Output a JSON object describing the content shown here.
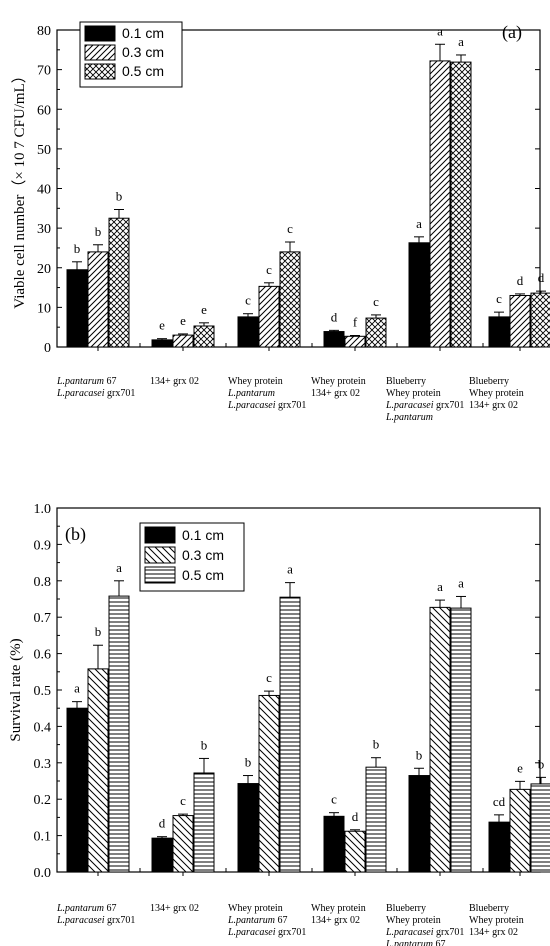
{
  "chart_data": [
    {
      "type": "bar",
      "panel_label": "(a)",
      "ylabel": "Viable cell number（× 10 7 CFU/mL）",
      "ylim": [
        0,
        80
      ],
      "yticks": [
        0,
        10,
        20,
        30,
        40,
        50,
        60,
        70,
        80
      ],
      "legend_position": "top-left",
      "categories": [
        {
          "lines": [
            {
              "text": "L.pantarum",
              "italic": true,
              "rest": " 67"
            },
            {
              "text": "L.paracasei",
              "italic": true,
              "rest": " grx701"
            }
          ]
        },
        {
          "lines": [
            {
              "text": "134+ grx 02",
              "italic": false,
              "rest": ""
            }
          ]
        },
        {
          "lines": [
            {
              "text": "Whey protein",
              "italic": false,
              "rest": ""
            },
            {
              "text": "L.pantarum",
              "italic": true,
              "rest": ""
            },
            {
              "text": "L.paracasei",
              "italic": true,
              "rest": " grx701"
            }
          ]
        },
        {
          "lines": [
            {
              "text": "Whey protein",
              "italic": false,
              "rest": ""
            },
            {
              "text": "134+ grx 02",
              "italic": false,
              "rest": ""
            }
          ]
        },
        {
          "lines": [
            {
              "text": "Blueberry",
              "italic": false,
              "rest": ""
            },
            {
              "text": "Whey protein",
              "italic": false,
              "rest": ""
            },
            {
              "text": "L.paracasei",
              "italic": true,
              "rest": " grx701"
            },
            {
              "text": "L.pantarum",
              "italic": true,
              "rest": ""
            }
          ]
        },
        {
          "lines": [
            {
              "text": "Blueberry",
              "italic": false,
              "rest": ""
            },
            {
              "text": "Whey protein",
              "italic": false,
              "rest": ""
            },
            {
              "text": "134+ grx 02",
              "italic": false,
              "rest": ""
            }
          ]
        }
      ],
      "series": [
        {
          "name": "0.1 cm",
          "pattern": "solid",
          "values": [
            19.5,
            1.8,
            7.6,
            3.9,
            26.3,
            7.6
          ],
          "errors": [
            2.0,
            0.3,
            0.8,
            0.3,
            1.5,
            1.2
          ],
          "letters": [
            "b",
            "e",
            "c",
            "d",
            "a",
            "c"
          ]
        },
        {
          "name": "0.3 cm",
          "pattern": "hatch",
          "values": [
            24.0,
            3.0,
            15.3,
            2.7,
            72.2,
            13.0
          ],
          "errors": [
            1.8,
            0.3,
            0.9,
            0.2,
            4.2,
            0.4
          ],
          "letters": [
            "b",
            "e",
            "c",
            "f",
            "a",
            "d"
          ]
        },
        {
          "name": "0.5 cm",
          "pattern": "crosshatch",
          "values": [
            32.5,
            5.3,
            24.0,
            7.3,
            71.9,
            13.6
          ],
          "errors": [
            2.2,
            0.8,
            2.5,
            0.8,
            1.8,
            0.5
          ],
          "letters": [
            "b",
            "e",
            "c",
            "c",
            "a",
            "d"
          ]
        }
      ]
    },
    {
      "type": "bar",
      "panel_label": "(b)",
      "ylabel": "Survival rate (%)",
      "ylim": [
        0,
        1.0
      ],
      "yticks": [
        0.0,
        0.1,
        0.2,
        0.3,
        0.4,
        0.5,
        0.6,
        0.7,
        0.8,
        0.9,
        1.0
      ],
      "legend_position": "top-left",
      "categories": [
        {
          "lines": [
            {
              "text": "L.pantarum",
              "italic": true,
              "rest": " 67"
            },
            {
              "text": "L.paracasei",
              "italic": true,
              "rest": " grx701"
            }
          ]
        },
        {
          "lines": [
            {
              "text": "134+ grx 02",
              "italic": false,
              "rest": ""
            }
          ]
        },
        {
          "lines": [
            {
              "text": "Whey protein",
              "italic": false,
              "rest": ""
            },
            {
              "text": "L.pantarum",
              "italic": true,
              "rest": " 67"
            },
            {
              "text": "L.paracasei",
              "italic": true,
              "rest": " grx701"
            }
          ]
        },
        {
          "lines": [
            {
              "text": "Whey protein",
              "italic": false,
              "rest": ""
            },
            {
              "text": "134+ grx 02",
              "italic": false,
              "rest": ""
            }
          ]
        },
        {
          "lines": [
            {
              "text": "Blueberry",
              "italic": false,
              "rest": ""
            },
            {
              "text": "Whey protein",
              "italic": false,
              "rest": ""
            },
            {
              "text": "L.paracasei",
              "italic": true,
              "rest": " grx701"
            },
            {
              "text": "L.pantarum",
              "italic": true,
              "rest": " 67"
            }
          ]
        },
        {
          "lines": [
            {
              "text": "Blueberry",
              "italic": false,
              "rest": ""
            },
            {
              "text": "Whey protein",
              "italic": false,
              "rest": ""
            },
            {
              "text": "134+ grx 02",
              "italic": false,
              "rest": ""
            }
          ]
        }
      ],
      "series": [
        {
          "name": "0.1 cm",
          "pattern": "solid",
          "values": [
            0.45,
            0.093,
            0.243,
            0.153,
            0.265,
            0.137
          ],
          "errors": [
            0.018,
            0.004,
            0.022,
            0.01,
            0.02,
            0.02
          ],
          "letters": [
            "a",
            "d",
            "b",
            "c",
            "b",
            "cd"
          ]
        },
        {
          "name": "0.3 cm",
          "pattern": "diagonal",
          "values": [
            0.558,
            0.155,
            0.485,
            0.112,
            0.727,
            0.227
          ],
          "errors": [
            0.065,
            0.004,
            0.012,
            0.004,
            0.02,
            0.022
          ],
          "letters": [
            "b",
            "c",
            "c",
            "d",
            "a",
            "e"
          ]
        },
        {
          "name": "0.5 cm",
          "pattern": "horizontal",
          "values": [
            0.758,
            0.272,
            0.755,
            0.288,
            0.725,
            0.242
          ],
          "errors": [
            0.042,
            0.04,
            0.04,
            0.026,
            0.032,
            0.018
          ],
          "letters": [
            "a",
            "b",
            "a",
            "b",
            "a",
            "b"
          ]
        }
      ]
    }
  ]
}
